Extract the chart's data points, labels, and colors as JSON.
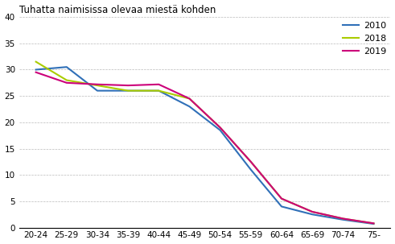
{
  "title": "Tuhatta naimisissa olevaa miestä kohden",
  "categories": [
    "20-24",
    "25-29",
    "30-34",
    "35-39",
    "40-44",
    "45-49",
    "50-54",
    "55-59",
    "60-64",
    "65-69",
    "70-74",
    "75-"
  ],
  "series": {
    "2010": [
      30.0,
      30.5,
      26.0,
      26.0,
      26.0,
      23.0,
      18.5,
      11.0,
      4.0,
      2.5,
      1.5,
      0.7
    ],
    "2018": [
      31.5,
      28.0,
      27.0,
      26.0,
      26.0,
      24.5,
      19.0,
      12.5,
      5.5,
      3.0,
      1.7,
      0.8
    ],
    "2019": [
      29.5,
      27.5,
      27.2,
      27.0,
      27.2,
      24.5,
      19.0,
      12.5,
      5.5,
      3.0,
      1.7,
      0.8
    ]
  },
  "colors": {
    "2010": "#3070B8",
    "2018": "#AACC00",
    "2019": "#CC007A"
  },
  "ylim": [
    0,
    40
  ],
  "yticks": [
    0,
    5,
    10,
    15,
    20,
    25,
    30,
    35,
    40
  ],
  "background_color": "#ffffff",
  "grid_color": "#bbbbbb",
  "linewidth": 1.5,
  "title_fontsize": 8.5,
  "tick_fontsize": 7.5,
  "legend_fontsize": 8.0
}
